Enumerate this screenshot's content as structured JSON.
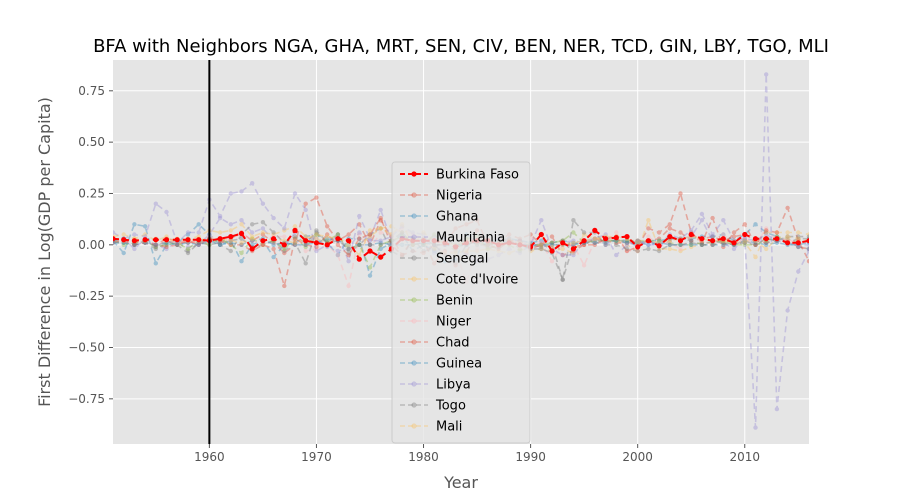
{
  "chart_data": {
    "type": "line",
    "title": "BFA with Neighbors NGA, GHA, MRT, SEN, CIV, BEN, NER, TCD, GIN, LBY, TGO, MLI",
    "xlabel": "Year",
    "ylabel": "First Difference in Log(GDP per Capita)",
    "xlim": [
      1951,
      2016
    ],
    "ylim": [
      -0.97,
      0.9
    ],
    "xticks": [
      1960,
      1970,
      1980,
      1990,
      2000,
      2010
    ],
    "yticks": [
      -0.75,
      -0.5,
      -0.25,
      0.0,
      0.25,
      0.5,
      0.75
    ],
    "ytick_labels": [
      "−0.75",
      "−0.50",
      "−0.25",
      "0.00",
      "0.25",
      "0.50",
      "0.75"
    ],
    "grid": true,
    "legend_placement": "center",
    "treatment_line": 1960,
    "x": [
      1951,
      1952,
      1953,
      1954,
      1955,
      1956,
      1957,
      1958,
      1959,
      1960,
      1961,
      1962,
      1963,
      1964,
      1965,
      1966,
      1967,
      1968,
      1969,
      1970,
      1971,
      1972,
      1973,
      1974,
      1975,
      1976,
      1977,
      1978,
      1979,
      1980,
      1981,
      1982,
      1983,
      1984,
      1985,
      1986,
      1987,
      1988,
      1989,
      1990,
      1991,
      1992,
      1993,
      1994,
      1995,
      1996,
      1997,
      1998,
      1999,
      2000,
      2001,
      2002,
      2003,
      2004,
      2005,
      2006,
      2007,
      2008,
      2009,
      2010,
      2011,
      2012,
      2013,
      2014,
      2015,
      2016
    ],
    "series": [
      {
        "name": "Burkina Faso",
        "color": "#ff0000",
        "treated": true,
        "values": [
          0.03,
          0.025,
          0.02,
          0.025,
          0.025,
          0.025,
          0.025,
          0.025,
          0.025,
          0.02,
          0.03,
          0.04,
          0.055,
          -0.02,
          0.02,
          0.03,
          0.0,
          0.07,
          0.02,
          0.01,
          0.0,
          0.03,
          0.02,
          -0.07,
          -0.03,
          -0.06,
          -0.02,
          0.03,
          0.02,
          0.02,
          0.02,
          0.01,
          -0.01,
          0.01,
          0.02,
          0.02,
          0.0,
          0.01,
          0.0,
          -0.01,
          0.05,
          -0.03,
          0.01,
          -0.02,
          0.02,
          0.07,
          0.03,
          0.035,
          0.04,
          -0.01,
          0.02,
          -0.005,
          0.04,
          0.02,
          0.05,
          0.03,
          0.02,
          0.03,
          0.01,
          0.05,
          0.03,
          0.03,
          0.03,
          0.01,
          0.01,
          0.02
        ]
      },
      {
        "name": "Nigeria",
        "color": "#e24a33",
        "values": [
          0.03,
          0.02,
          0.01,
          0.02,
          0.0,
          0.03,
          0.02,
          0.01,
          0.02,
          0.03,
          0.02,
          0.03,
          0.06,
          0.02,
          0.05,
          0.01,
          -0.04,
          0.0,
          0.2,
          0.23,
          0.09,
          0.02,
          0.05,
          0.1,
          0.0,
          0.12,
          0.04,
          -0.05,
          0.03,
          0.02,
          -0.09,
          -0.03,
          -0.1,
          -0.04,
          0.07,
          0.01,
          0.02,
          0.05,
          0.03,
          0.05,
          0.0,
          0.01,
          0.02,
          -0.01,
          0.0,
          0.03,
          0.02,
          0.01,
          0.01,
          0.02,
          0.02,
          0.03,
          0.08,
          0.06,
          0.02,
          0.03,
          0.04,
          0.02,
          0.04,
          0.05,
          0.02,
          0.01,
          0.03,
          0.02,
          -0.01,
          -0.02
        ]
      },
      {
        "name": "Ghana",
        "color": "#348abd",
        "values": [
          0.02,
          -0.04,
          0.1,
          0.09,
          -0.09,
          0.0,
          0.01,
          0.05,
          0.1,
          0.05,
          0.0,
          0.02,
          -0.08,
          0.0,
          0.02,
          -0.06,
          0.0,
          0.01,
          0.04,
          0.05,
          0.01,
          -0.05,
          0.03,
          0.03,
          -0.15,
          -0.02,
          0.01,
          0.05,
          -0.03,
          0.0,
          -0.03,
          -0.08,
          -0.07,
          0.05,
          0.02,
          0.02,
          0.02,
          0.03,
          0.02,
          0.01,
          0.02,
          0.01,
          0.02,
          0.01,
          0.01,
          0.02,
          0.02,
          0.02,
          0.02,
          0.01,
          0.02,
          0.02,
          0.03,
          0.03,
          0.03,
          0.04,
          0.04,
          0.05,
          0.02,
          0.05,
          0.1,
          0.06,
          0.04,
          0.01,
          -0.01,
          -0.02
        ]
      },
      {
        "name": "Mauritania",
        "color": "#988ed5",
        "values": [
          0.06,
          0.03,
          -0.02,
          0.03,
          0.0,
          -0.02,
          0.02,
          -0.01,
          0.0,
          0.05,
          0.13,
          0.1,
          0.12,
          0.06,
          0.08,
          0.02,
          -0.01,
          0.06,
          0.03,
          0.03,
          -0.01,
          0.05,
          -0.08,
          0.14,
          0.03,
          0.17,
          0.02,
          0.03,
          0.02,
          0.0,
          0.04,
          0.03,
          -0.02,
          0.01,
          0.02,
          -0.01,
          0.03,
          0.02,
          0.02,
          -0.01,
          0.01,
          -0.03,
          0.01,
          0.02,
          0.01,
          0.03,
          0.0,
          0.03,
          0.02,
          -0.01,
          0.02,
          -0.01,
          0.02,
          0.03,
          0.04,
          0.12,
          0.02,
          0.01,
          -0.02,
          0.03,
          0.02,
          0.05,
          0.02,
          0.01,
          0.0,
          0.0
        ]
      },
      {
        "name": "Senegal",
        "color": "#777777",
        "values": [
          0.02,
          0.01,
          0.0,
          0.01,
          -0.02,
          0.01,
          0.02,
          -0.03,
          0.01,
          0.0,
          0.01,
          0.02,
          0.03,
          -0.01,
          0.0,
          0.02,
          -0.03,
          0.01,
          -0.09,
          0.07,
          0.01,
          0.05,
          -0.04,
          0.0,
          0.05,
          0.08,
          -0.03,
          -0.06,
          0.03,
          -0.03,
          -0.02,
          0.04,
          -0.01,
          0.03,
          0.0,
          0.0,
          0.02,
          0.03,
          -0.02,
          0.0,
          -0.01,
          0.0,
          -0.17,
          0.0,
          0.02,
          0.01,
          0.02,
          0.02,
          0.01,
          0.0,
          0.02,
          0.0,
          0.03,
          0.03,
          0.02,
          0.0,
          0.02,
          0.01,
          0.0,
          0.02,
          0.0,
          0.01,
          0.02,
          0.01,
          0.03,
          0.03
        ]
      },
      {
        "name": "Cote d'Ivoire",
        "color": "#fbc15e",
        "values": [
          0.04,
          0.05,
          0.03,
          0.05,
          0.02,
          0.04,
          0.0,
          0.03,
          0.04,
          0.07,
          0.06,
          0.07,
          0.1,
          0.04,
          0.06,
          0.05,
          0.07,
          0.09,
          0.04,
          0.03,
          0.01,
          0.03,
          0.02,
          0.0,
          0.04,
          0.08,
          0.09,
          0.06,
          0.0,
          0.01,
          -0.02,
          -0.04,
          -0.04,
          -0.03,
          -0.03,
          -0.02,
          -0.03,
          -0.04,
          -0.02,
          -0.03,
          -0.02,
          -0.03,
          -0.02,
          -0.04,
          0.05,
          0.03,
          0.03,
          0.02,
          0.0,
          -0.03,
          0.12,
          -0.02,
          -0.02,
          -0.03,
          -0.01,
          0.0,
          0.0,
          0.01,
          0.02,
          0.01,
          -0.06,
          0.06,
          0.06,
          0.06,
          0.06,
          0.05
        ]
      },
      {
        "name": "Benin",
        "color": "#8eba42",
        "values": [
          0.02,
          0.0,
          0.01,
          0.02,
          -0.01,
          0.0,
          0.01,
          -0.02,
          0.02,
          0.0,
          0.03,
          0.0,
          -0.04,
          0.03,
          0.0,
          0.02,
          -0.02,
          0.03,
          -0.01,
          0.05,
          0.02,
          0.05,
          -0.02,
          0.0,
          -0.11,
          0.0,
          0.02,
          0.04,
          0.03,
          0.0,
          0.05,
          0.01,
          -0.03,
          0.03,
          0.04,
          -0.02,
          0.0,
          0.0,
          -0.03,
          0.0,
          0.0,
          0.01,
          0.02,
          0.06,
          0.01,
          0.02,
          0.02,
          0.02,
          0.02,
          0.02,
          0.02,
          0.02,
          0.01,
          0.0,
          0.0,
          0.01,
          0.01,
          0.02,
          0.0,
          0.0,
          0.0,
          0.02,
          0.04,
          0.03,
          0.01,
          0.02
        ]
      },
      {
        "name": "Niger",
        "color": "#ffb5b8",
        "values": [
          0.03,
          0.02,
          0.0,
          0.02,
          0.0,
          0.02,
          0.01,
          0.02,
          0.01,
          0.04,
          0.03,
          0.02,
          0.06,
          0.02,
          0.0,
          0.04,
          0.04,
          0.02,
          -0.03,
          -0.02,
          0.0,
          -0.05,
          -0.2,
          0.05,
          -0.02,
          0.06,
          0.05,
          0.08,
          0.05,
          0.03,
          0.0,
          -0.04,
          -0.03,
          -0.18,
          -0.02,
          0.0,
          0.01,
          0.03,
          0.0,
          0.03,
          0.01,
          -0.08,
          0.0,
          0.0,
          -0.1,
          0.02,
          0.01,
          0.06,
          -0.03,
          -0.03,
          0.04,
          0.0,
          0.01,
          -0.02,
          0.04,
          0.02,
          0.0,
          0.05,
          0.0,
          0.03,
          0.0,
          0.08,
          0.02,
          0.03,
          0.0,
          0.02
        ]
      },
      {
        "name": "Chad",
        "color": "#e24a33",
        "values": [
          0.01,
          0.02,
          0.0,
          0.01,
          0.0,
          -0.01,
          0.0,
          0.02,
          0.0,
          0.03,
          0.02,
          0.0,
          0.0,
          -0.03,
          0.0,
          -0.02,
          -0.2,
          0.03,
          0.0,
          -0.01,
          0.05,
          0.0,
          -0.05,
          0.03,
          0.05,
          0.13,
          0.0,
          -0.05,
          -0.03,
          -0.04,
          0.0,
          0.0,
          0.08,
          0.1,
          0.12,
          0.0,
          -0.02,
          0.02,
          0.02,
          -0.02,
          0.0,
          0.04,
          -0.05,
          -0.03,
          0.0,
          0.0,
          0.03,
          0.04,
          -0.03,
          -0.01,
          0.08,
          0.06,
          0.1,
          0.25,
          0.06,
          0.01,
          0.13,
          -0.01,
          0.06,
          0.1,
          0.0,
          0.07,
          0.06,
          0.18,
          0.02,
          -0.08
        ]
      },
      {
        "name": "Guinea",
        "color": "#348abd",
        "values": [
          0.01,
          0.01,
          0.0,
          0.01,
          0.0,
          0.01,
          0.0,
          0.01,
          0.0,
          0.02,
          0.0,
          0.01,
          0.0,
          0.02,
          0.03,
          0.0,
          0.01,
          0.0,
          0.0,
          0.01,
          0.03,
          0.02,
          0.0,
          0.0,
          0.0,
          0.01,
          0.0,
          0.0,
          0.0,
          0.01,
          0.0,
          0.0,
          0.0,
          0.0,
          0.01,
          0.0,
          0.02,
          0.01,
          0.0,
          0.0,
          0.0,
          0.0,
          0.0,
          0.0,
          0.01,
          0.01,
          0.01,
          0.02,
          0.01,
          0.01,
          0.0,
          0.01,
          0.0,
          0.0,
          0.0,
          0.0,
          0.0,
          0.0,
          0.0,
          0.02,
          0.01,
          0.0,
          0.01,
          0.0,
          0.0,
          0.01
        ]
      },
      {
        "name": "Libya",
        "color": "#988ed5",
        "values": [
          0.02,
          0.03,
          0.05,
          0.04,
          0.2,
          0.16,
          0.01,
          0.06,
          0.06,
          0.22,
          0.14,
          0.25,
          0.26,
          0.3,
          0.2,
          0.13,
          0.08,
          0.25,
          0.17,
          -0.03,
          0.0,
          -0.03,
          -0.02,
          0.06,
          0.02,
          0.02,
          0.04,
          0.09,
          0.06,
          0.05,
          -0.04,
          0.0,
          -0.01,
          -0.05,
          -0.08,
          -0.07,
          -0.05,
          -0.02,
          -0.04,
          0.0,
          0.12,
          -0.02,
          -0.05,
          -0.05,
          0.02,
          0.03,
          0.05,
          -0.05,
          0.0,
          0.02,
          0.0,
          0.0,
          0.05,
          0.03,
          0.07,
          0.15,
          0.05,
          0.12,
          0.02,
          0.03,
          -0.89,
          0.83,
          -0.8,
          -0.32,
          -0.13,
          -0.03
        ]
      },
      {
        "name": "Togo",
        "color": "#777777",
        "values": [
          0.02,
          0.03,
          0.0,
          0.02,
          -0.01,
          0.02,
          0.0,
          -0.04,
          0.01,
          0.03,
          0.0,
          -0.03,
          0.05,
          0.1,
          0.11,
          0.06,
          0.01,
          0.04,
          0.01,
          0.06,
          0.01,
          0.02,
          -0.02,
          0.0,
          0.0,
          0.0,
          0.02,
          0.06,
          0.0,
          0.03,
          0.0,
          -0.05,
          -0.09,
          0.0,
          0.02,
          0.01,
          -0.01,
          0.02,
          0.0,
          -0.02,
          -0.02,
          -0.04,
          -0.17,
          0.12,
          0.06,
          0.06,
          0.0,
          0.0,
          -0.02,
          -0.03,
          -0.02,
          -0.03,
          0.0,
          0.0,
          0.01,
          0.0,
          0.0,
          0.01,
          0.0,
          0.01,
          0.0,
          0.03,
          0.02,
          0.04,
          0.04,
          0.04
        ]
      },
      {
        "name": "Mali",
        "color": "#fbc15e",
        "values": [
          0.03,
          0.02,
          0.03,
          0.02,
          0.03,
          0.02,
          0.03,
          0.02,
          0.03,
          0.02,
          0.03,
          0.02,
          0.01,
          0.03,
          0.02,
          0.03,
          0.02,
          0.01,
          0.03,
          0.05,
          0.04,
          0.03,
          0.0,
          -0.05,
          0.07,
          0.08,
          0.05,
          0.1,
          0.0,
          0.06,
          0.02,
          0.01,
          0.0,
          0.02,
          0.01,
          0.0,
          0.01,
          0.02,
          0.01,
          0.0,
          0.0,
          -0.01,
          0.0,
          0.01,
          0.02,
          0.03,
          0.04,
          0.04,
          0.03,
          0.01,
          0.02,
          0.01,
          0.02,
          0.03,
          0.04,
          0.03,
          0.02,
          0.02,
          0.01,
          0.02,
          0.02,
          -0.02,
          0.03,
          0.04,
          0.03,
          0.02
        ]
      }
    ]
  }
}
